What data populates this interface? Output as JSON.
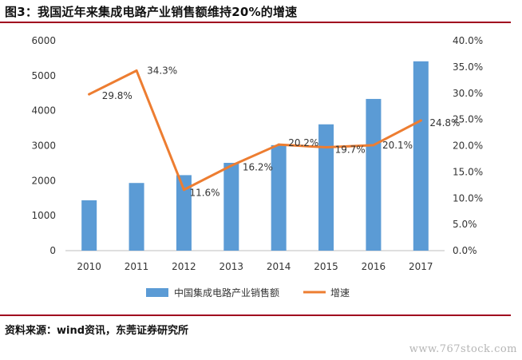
{
  "figure": {
    "title": "图3：我国近年来集成电路产业销售额维持20%的增速",
    "source": "资料来源：wind资讯，东莞证券研究所",
    "watermark": "www.767stock.com"
  },
  "colors": {
    "bar": "#5b9bd5",
    "line": "#ed7d31",
    "rule": "#a0001e",
    "axis": "#bfbfbf"
  },
  "chart_data": {
    "type": "bar",
    "categories": [
      "2010",
      "2011",
      "2012",
      "2013",
      "2014",
      "2015",
      "2016",
      "2017"
    ],
    "series": [
      {
        "name": "中国集成电路产业销售额",
        "type": "bar",
        "axis": "left",
        "values": [
          1440,
          1934,
          2158,
          2509,
          3015,
          3610,
          4336,
          5411
        ]
      },
      {
        "name": "增速",
        "type": "line",
        "axis": "right",
        "values": [
          29.8,
          34.3,
          11.6,
          16.2,
          20.2,
          19.7,
          20.1,
          24.8
        ],
        "labels": [
          "29.8%",
          "34.3%",
          "11.6%",
          "16.2%",
          "20.2%",
          "19.7%",
          "20.1%",
          "24.8%"
        ]
      }
    ],
    "ylim": [
      0,
      6000
    ],
    "yticks": [
      "0",
      "1000",
      "2000",
      "3000",
      "4000",
      "5000",
      "6000"
    ],
    "y2lim": [
      0,
      40
    ],
    "y2ticks": [
      "0.0%",
      "5.0%",
      "10.0%",
      "15.0%",
      "20.0%",
      "25.0%",
      "30.0%",
      "35.0%",
      "40.0%"
    ],
    "grid": false,
    "legend": "bottom"
  }
}
